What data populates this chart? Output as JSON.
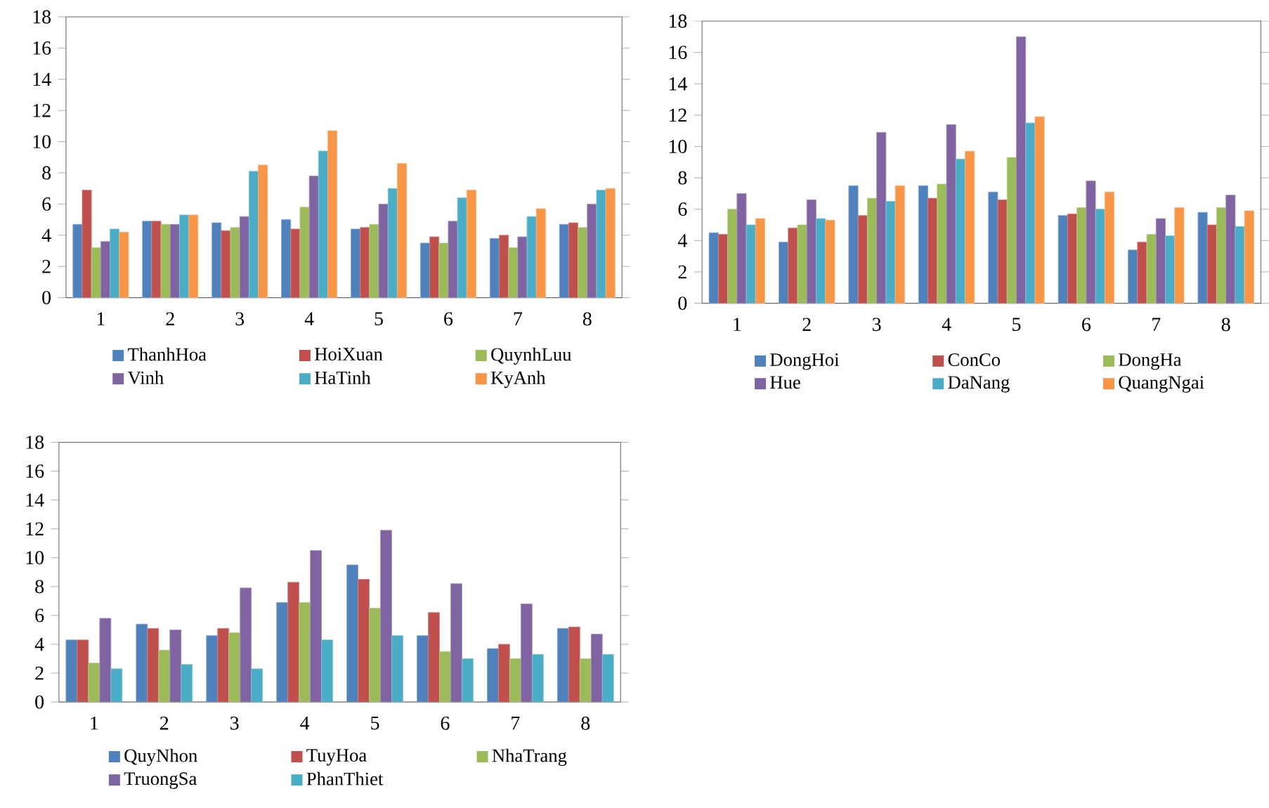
{
  "chart_data": [
    {
      "type": "bar",
      "categories": [
        "1",
        "2",
        "3",
        "4",
        "5",
        "6",
        "7",
        "8"
      ],
      "ylim": [
        0,
        18
      ],
      "yticks": [
        0,
        2,
        4,
        6,
        8,
        10,
        12,
        14,
        16,
        18
      ],
      "legend": "bottom",
      "grid": false,
      "series": [
        {
          "name": "ThanhHoa",
          "color": "#4f81bd",
          "values": [
            4.7,
            4.9,
            4.8,
            5.0,
            4.4,
            3.5,
            3.8,
            4.7
          ]
        },
        {
          "name": "HoiXuan",
          "color": "#c0504d",
          "values": [
            6.9,
            4.9,
            4.3,
            4.4,
            4.5,
            3.9,
            4.0,
            4.8
          ]
        },
        {
          "name": "QuynhLuu",
          "color": "#9bbb59",
          "values": [
            3.2,
            4.7,
            4.5,
            5.8,
            4.7,
            3.5,
            3.2,
            4.5
          ]
        },
        {
          "name": "Vinh",
          "color": "#8064a2",
          "values": [
            3.6,
            4.7,
            5.2,
            7.8,
            6.0,
            4.9,
            3.9,
            6.0
          ]
        },
        {
          "name": "HaTinh",
          "color": "#4bacc6",
          "values": [
            4.4,
            5.3,
            8.1,
            9.4,
            7.0,
            6.4,
            5.2,
            6.9
          ]
        },
        {
          "name": "KyAnh",
          "color": "#f79646",
          "values": [
            4.2,
            5.3,
            8.5,
            10.7,
            8.6,
            6.9,
            5.7,
            7.0
          ]
        }
      ]
    },
    {
      "type": "bar",
      "categories": [
        "1",
        "2",
        "3",
        "4",
        "5",
        "6",
        "7",
        "8"
      ],
      "ylim": [
        0,
        18
      ],
      "yticks": [
        0,
        2,
        4,
        6,
        8,
        10,
        12,
        14,
        16,
        18
      ],
      "legend": "bottom",
      "grid": false,
      "series": [
        {
          "name": "DongHoi",
          "color": "#4f81bd",
          "values": [
            4.5,
            3.9,
            7.5,
            7.5,
            7.1,
            5.6,
            3.4,
            5.8
          ]
        },
        {
          "name": "ConCo",
          "color": "#c0504d",
          "values": [
            4.4,
            4.8,
            5.6,
            6.7,
            6.6,
            5.7,
            3.9,
            5.0
          ]
        },
        {
          "name": "DongHa",
          "color": "#9bbb59",
          "values": [
            6.0,
            5.0,
            6.7,
            7.6,
            9.3,
            6.1,
            4.4,
            6.1
          ]
        },
        {
          "name": "Hue",
          "color": "#8064a2",
          "values": [
            7.0,
            6.6,
            10.9,
            11.4,
            17.0,
            7.8,
            5.4,
            6.9
          ]
        },
        {
          "name": "DaNang",
          "color": "#4bacc6",
          "values": [
            5.0,
            5.4,
            6.5,
            9.2,
            11.5,
            6.0,
            4.3,
            4.9
          ]
        },
        {
          "name": "QuangNgai",
          "color": "#f79646",
          "values": [
            5.4,
            5.3,
            7.5,
            9.7,
            11.9,
            7.1,
            6.1,
            5.9
          ]
        }
      ]
    },
    {
      "type": "bar",
      "categories": [
        "1",
        "2",
        "3",
        "4",
        "5",
        "6",
        "7",
        "8"
      ],
      "ylim": [
        0,
        18
      ],
      "yticks": [
        0,
        2,
        4,
        6,
        8,
        10,
        12,
        14,
        16,
        18
      ],
      "legend": "bottom",
      "grid": false,
      "series": [
        {
          "name": "QuyNhon",
          "color": "#4f81bd",
          "values": [
            4.3,
            5.4,
            4.6,
            6.9,
            9.5,
            4.6,
            3.7,
            5.1
          ]
        },
        {
          "name": "TuyHoa",
          "color": "#c0504d",
          "values": [
            4.3,
            5.1,
            5.1,
            8.3,
            8.5,
            6.2,
            4.0,
            5.2
          ]
        },
        {
          "name": "NhaTrang",
          "color": "#9bbb59",
          "values": [
            2.7,
            3.6,
            4.8,
            6.9,
            6.5,
            3.5,
            3.0,
            3.0
          ]
        },
        {
          "name": "TruongSa",
          "color": "#8064a2",
          "values": [
            5.8,
            5.0,
            7.9,
            10.5,
            11.9,
            8.2,
            6.8,
            4.7
          ]
        },
        {
          "name": "PhanThiet",
          "color": "#4bacc6",
          "values": [
            2.3,
            2.6,
            2.3,
            4.3,
            4.6,
            3.0,
            3.3,
            3.3
          ]
        }
      ]
    }
  ]
}
